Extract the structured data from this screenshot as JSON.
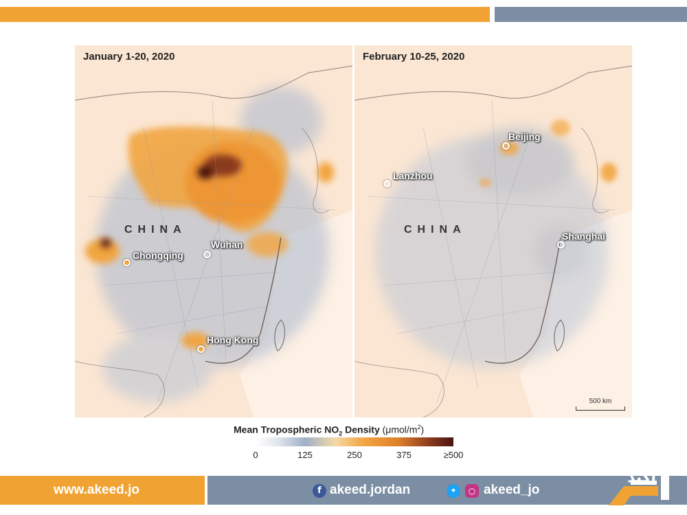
{
  "maps": {
    "left": {
      "title": "January 1-20, 2020",
      "country": "CHINA",
      "cities": {
        "chongqing": "Chongqing",
        "wuhan": "Wuhan",
        "hongkong": "Hong Kong"
      }
    },
    "right": {
      "title": "February 10-25, 2020",
      "country": "CHINA",
      "cities": {
        "beijing": "Beijing",
        "lanzhou": "Lanzhou",
        "shanghai": "Shanghai"
      },
      "scale_label": "500 km"
    }
  },
  "legend": {
    "title_main": "Mean Tropospheric NO",
    "title_sub": "2",
    "title_rest": " Density",
    "title_unit": "(μmol/m",
    "title_unit_sup": "2",
    "title_unit_close": ")",
    "ticks": [
      "0",
      "125",
      "250",
      "375",
      "≥500"
    ]
  },
  "footer": {
    "website": "www.akeed.jo",
    "facebook": "akeed.jordan",
    "social": "akeed_jo",
    "logo_text": "أكيد"
  },
  "colors": {
    "accent_orange": "#f0a332",
    "slate": "#7c8ea3",
    "map_background": "#fbe6d3",
    "no2_low": "#9fb0c8",
    "no2_mid": "#f2a540",
    "no2_high": "#4a1410"
  },
  "icons": [
    "facebook-icon",
    "twitter-icon",
    "instagram-icon"
  ]
}
